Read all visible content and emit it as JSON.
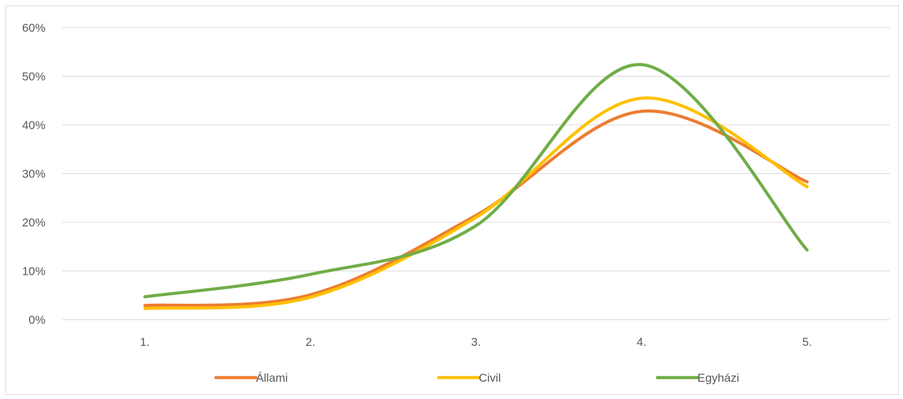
{
  "chart_data": {
    "type": "line",
    "smooth": true,
    "categories": [
      "1.",
      "2.",
      "3.",
      "4.",
      "5."
    ],
    "y_ticks": [
      "0%",
      "10%",
      "20%",
      "30%",
      "40%",
      "50%",
      "60%"
    ],
    "ylim": [
      0,
      0.6
    ],
    "y_format": "percent",
    "grid": true,
    "legend_position": "bottom",
    "series": [
      {
        "name": "Állami",
        "color": "#ED7D31",
        "values": [
          0.029,
          0.051,
          0.214,
          0.428,
          0.283
        ]
      },
      {
        "name": "Civil",
        "color": "#FFC000",
        "values": [
          0.023,
          0.046,
          0.21,
          0.455,
          0.273
        ]
      },
      {
        "name": "Egyházi",
        "color": "#70AD47",
        "values": [
          0.047,
          0.093,
          0.193,
          0.524,
          0.143
        ]
      }
    ]
  }
}
